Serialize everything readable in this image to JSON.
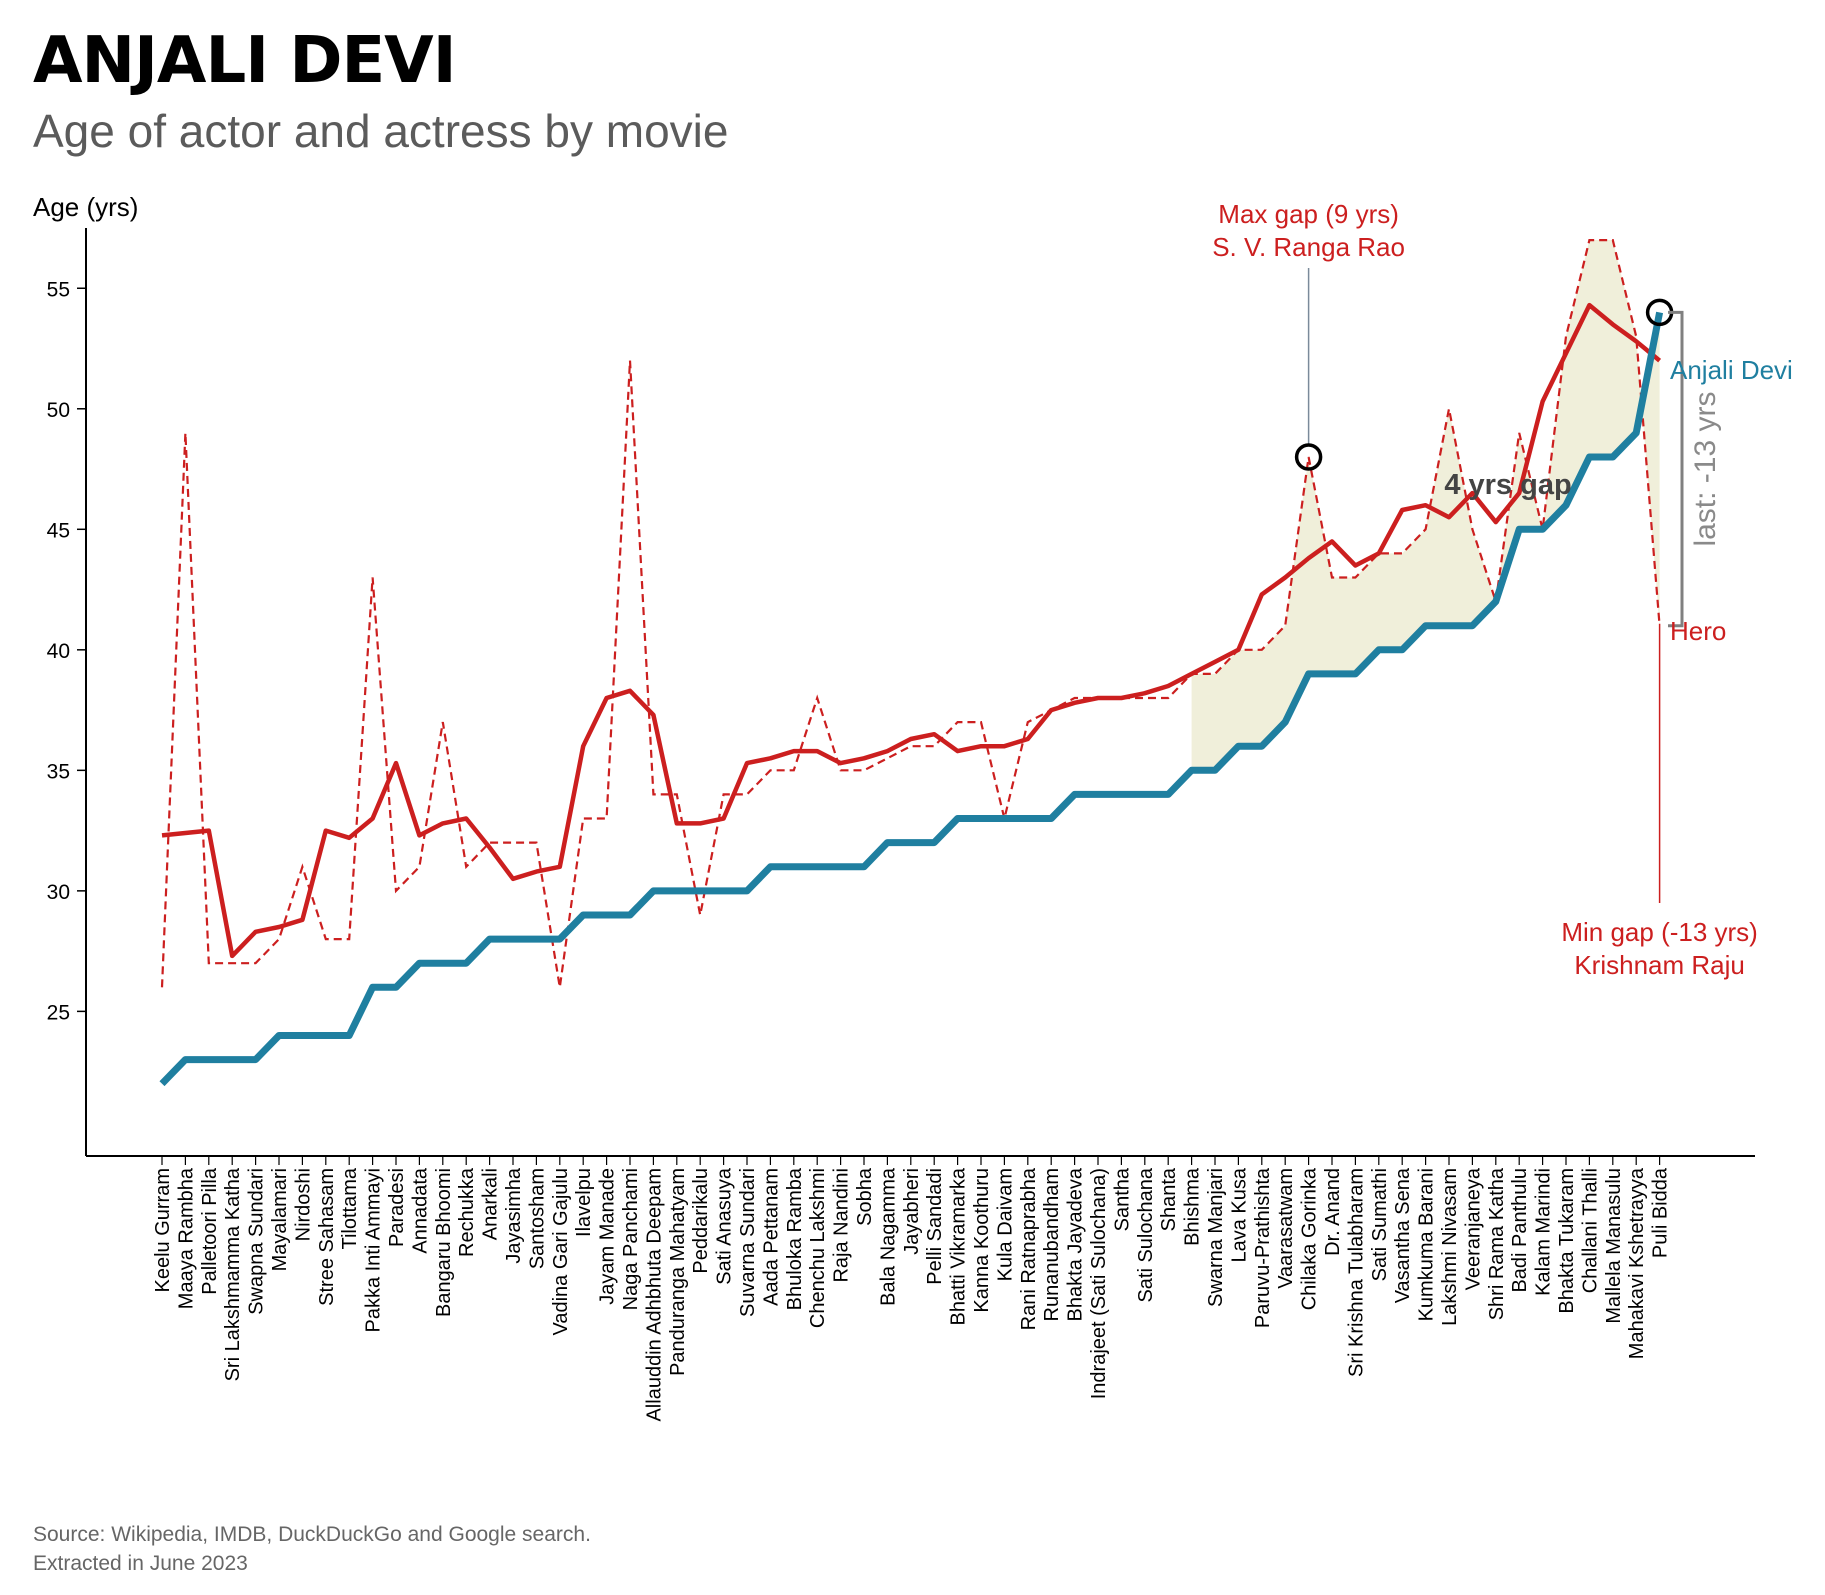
{
  "title": "ANJALI DEVI",
  "subtitle": "Age of actor and actress by movie",
  "source": [
    "Source: Wikipedia, IMDB, DuckDuckGo and Google search.",
    "Extracted in June 2023"
  ],
  "chart_data": {
    "type": "line",
    "ylabel": "Age (yrs)",
    "ylim": [
      19,
      57.5
    ],
    "yticks": [
      25,
      30,
      35,
      40,
      45,
      50,
      55
    ],
    "grid": false,
    "categories": [
      "Keelu Gurram",
      "Maaya Rambha",
      "Palletoori Pilla",
      "Sri Lakshmamma Katha",
      "Swapna Sundari",
      "Mayalamari",
      "Nirdoshi",
      "Stree Sahasam",
      "Tilottama",
      "Pakka Inti Ammayi",
      "Paradesi",
      "Annadata",
      "Bangaru Bhoomi",
      "Rechukka",
      "Anarkali",
      "Jayasimha",
      "Santosham",
      "Vadina Gari Gajulu",
      "Ilavelpu",
      "Jayam Manade",
      "Naga Panchami",
      "Allauddin Adhbhuta Deepam",
      "Panduranga Mahatyam",
      "Peddarikalu",
      "Sati Anasuya",
      "Suvarna Sundari",
      "Aada Pettanam",
      "Bhuloka Ramba",
      "Chenchu Lakshmi",
      "Raja Nandini",
      "Sobha",
      "Bala Nagamma",
      "Jayabheri",
      "Pelli Sandadi",
      "Bhatti Vikramarka",
      "Kanna Koothuru",
      "Kula Daivam",
      "Rani Ratnaprabha",
      "Runanubandham",
      "Bhakta Jayadeva",
      "Indrajeet (Sati Sulochana)",
      "Santha",
      "Sati Sulochana",
      "Shanta",
      "Bhishma",
      "Swarna Manjari",
      "Lava Kusa",
      "Paruvu-Prathishta",
      "Vaarasatwam",
      "Chilaka Gorinka",
      "Dr. Anand",
      "Sri Krishna Tulabharam",
      "Sati Sumathi",
      "Vasantha Sena",
      "Kumkuma Barani",
      "Lakshmi Nivasam",
      "Veeranjaneya",
      "Shri Rama Katha",
      "Badi Panthulu",
      "Kalam Marindi",
      "Bhakta Tukaram",
      "Challani Thalli",
      "Mallela Manasulu",
      "Mahakavi Kshetrayya",
      "Puli Bidda"
    ],
    "series": [
      {
        "name": "Anjali Devi",
        "color": "#1f7fa0",
        "style": "thick",
        "values": [
          22,
          23,
          23,
          23,
          23,
          24,
          24,
          24,
          24,
          26,
          26,
          27,
          27,
          27,
          28,
          28,
          28,
          28,
          29,
          29,
          29,
          30,
          30,
          30,
          30,
          30,
          31,
          31,
          31,
          31,
          31,
          32,
          32,
          32,
          33,
          33,
          33,
          33,
          33,
          34,
          34,
          34,
          34,
          34,
          35,
          35,
          36,
          36,
          37,
          39,
          39,
          39,
          40,
          40,
          41,
          41,
          41,
          42,
          45,
          45,
          46,
          48,
          48,
          49,
          54
        ]
      },
      {
        "name": "Hero",
        "color": "#cc1f1f",
        "style": "dashed",
        "values": [
          26,
          49,
          27,
          27,
          27,
          28,
          31,
          28,
          28,
          43,
          30,
          31,
          37,
          31,
          32,
          32,
          32,
          26,
          33,
          33,
          52,
          34,
          34,
          29,
          34,
          34,
          35,
          35,
          38,
          35,
          35,
          35.5,
          36,
          36,
          37,
          37,
          33,
          37,
          37.5,
          38,
          38,
          38,
          38,
          38,
          39,
          39,
          40,
          40,
          41,
          48,
          43,
          43,
          44,
          44,
          45,
          50,
          45,
          42,
          49,
          45,
          53,
          57,
          57,
          53,
          41
        ]
      },
      {
        "name": "Hero (trend)",
        "color": "#cc1f1f",
        "style": "solid",
        "values": [
          32.3,
          32.4,
          32.5,
          27.3,
          28.3,
          28.5,
          28.8,
          32.5,
          32.2,
          33,
          35.3,
          32.3,
          32.8,
          33,
          31.8,
          30.5,
          30.8,
          31,
          36,
          38,
          38.3,
          37.3,
          32.8,
          32.8,
          33,
          35.3,
          35.5,
          35.8,
          35.8,
          35.3,
          35.5,
          35.8,
          36.3,
          36.5,
          35.8,
          36,
          36,
          36.3,
          37.5,
          37.8,
          38,
          38,
          38.2,
          38.5,
          39,
          39.5,
          40,
          42.3,
          43,
          43.8,
          44.5,
          43.5,
          44,
          45.8,
          46,
          45.5,
          46.5,
          45.3,
          46.5,
          50.3,
          52.3,
          54.3,
          53.5,
          52.8,
          52
        ]
      }
    ],
    "highlight_region_from": "Bhishma",
    "annotations": [
      {
        "text": [
          "Max gap (9 yrs)",
          "S. V. Ranga Rao"
        ],
        "category": "Chilaka Gorinka",
        "value": 48
      },
      {
        "text": [
          "Min gap (-13 yrs)",
          "Krishnam Raju"
        ],
        "category": "Puli Bidda",
        "value": 41
      },
      {
        "text": "4 yrs gap"
      },
      {
        "text": "last: -13 yrs"
      }
    ],
    "end_labels": {
      "actress": "Anjali Devi",
      "hero": "Hero"
    }
  }
}
